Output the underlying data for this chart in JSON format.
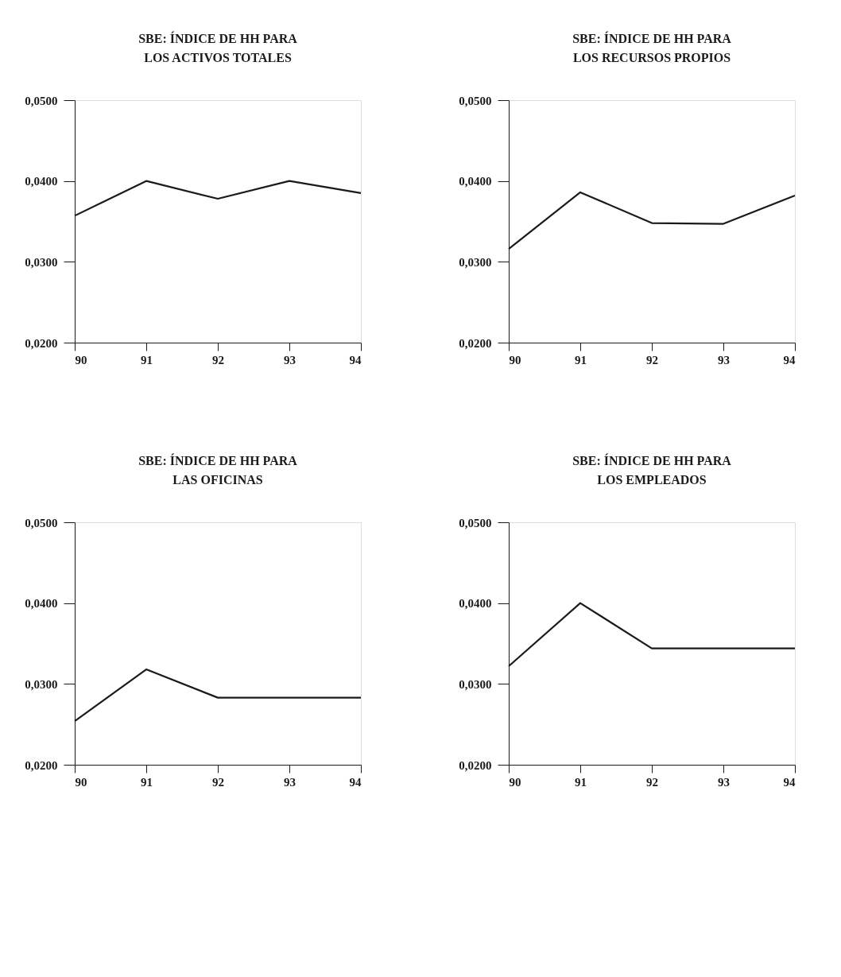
{
  "chart_data": [
    {
      "type": "line",
      "title": "SBE: ÍNDICE DE HH PARA\nLOS ACTIVOS TOTALES",
      "x": [
        90,
        91,
        92,
        93,
        94
      ],
      "series": [
        {
          "color": "#1a1a1a",
          "values": [
            0.0357,
            0.04,
            0.0378,
            0.04,
            0.0385
          ]
        }
      ],
      "xlim": [
        90,
        94
      ],
      "xticks": [
        90,
        91,
        92,
        93,
        94
      ],
      "ylim": [
        0.02,
        0.05
      ],
      "yticks": [
        {
          "value": 0.02,
          "label": "0,0200"
        },
        {
          "value": 0.03,
          "label": "0,0300"
        },
        {
          "value": 0.04,
          "label": "0,0400"
        },
        {
          "value": 0.05,
          "label": "0,0500"
        }
      ],
      "grid": false
    },
    {
      "type": "line",
      "title": "SBE: ÍNDICE DE HH PARA\nLOS RECURSOS PROPIOS",
      "x": [
        90,
        91,
        92,
        93,
        94
      ],
      "series": [
        {
          "color": "#1a1a1a",
          "values": [
            0.0316,
            0.0386,
            0.0348,
            0.0347,
            0.0382
          ]
        }
      ],
      "xlim": [
        90,
        94
      ],
      "xticks": [
        90,
        91,
        92,
        93,
        94
      ],
      "ylim": [
        0.02,
        0.05
      ],
      "yticks": [
        {
          "value": 0.02,
          "label": "0,0200"
        },
        {
          "value": 0.03,
          "label": "0,0300"
        },
        {
          "value": 0.04,
          "label": "0,0400"
        },
        {
          "value": 0.05,
          "label": "0,0500"
        }
      ],
      "grid": false
    },
    {
      "type": "line",
      "title": "SBE: ÍNDICE DE HH PARA\nLAS OFICINAS",
      "x": [
        90,
        91,
        92,
        93,
        94
      ],
      "series": [
        {
          "color": "#1a1a1a",
          "values": [
            0.0254,
            0.0318,
            0.0283,
            0.0283,
            0.0283
          ]
        }
      ],
      "xlim": [
        90,
        94
      ],
      "xticks": [
        90,
        91,
        92,
        93,
        94
      ],
      "ylim": [
        0.02,
        0.05
      ],
      "yticks": [
        {
          "value": 0.02,
          "label": "0,0200"
        },
        {
          "value": 0.03,
          "label": "0,0300"
        },
        {
          "value": 0.04,
          "label": "0,0400"
        },
        {
          "value": 0.05,
          "label": "0,0500"
        }
      ],
      "grid": false
    },
    {
      "type": "line",
      "title": "SBE: ÍNDICE DE HH PARA\nLOS EMPLEADOS",
      "x": [
        90,
        91,
        92,
        93,
        94
      ],
      "series": [
        {
          "color": "#1a1a1a",
          "values": [
            0.0322,
            0.04,
            0.0344,
            0.0344,
            0.0344
          ]
        }
      ],
      "xlim": [
        90,
        94
      ],
      "xticks": [
        90,
        91,
        92,
        93,
        94
      ],
      "ylim": [
        0.02,
        0.05
      ],
      "yticks": [
        {
          "value": 0.02,
          "label": "0,0200"
        },
        {
          "value": 0.03,
          "label": "0,0300"
        },
        {
          "value": 0.04,
          "label": "0,0400"
        },
        {
          "value": 0.05,
          "label": "0,0500"
        }
      ],
      "grid": false
    }
  ]
}
